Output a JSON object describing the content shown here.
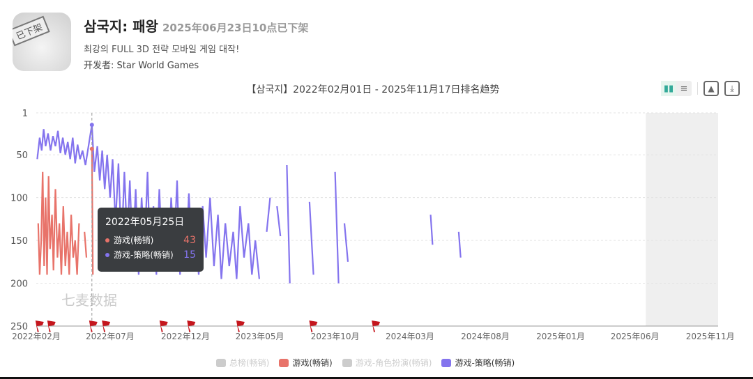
{
  "app": {
    "name": "삼국지: 패왕",
    "status": "2025年06月23日10点已下架",
    "description": "최강의 FULL 3D 전략 모바일 게임 대작!",
    "developer_label": "开发者:",
    "developer": "Star World Games",
    "icon_stamp": "已下架"
  },
  "toolbar": {
    "icons": [
      "bar-chart-icon",
      "list-icon",
      "image-download-icon",
      "download-icon"
    ]
  },
  "chart_data": {
    "type": "line",
    "title": "【삼국지】2022年02月01日 - 2025年11月17日排名趋势",
    "x_range": [
      "2022-02-01",
      "2025-11-17"
    ],
    "y_range": [
      1,
      250
    ],
    "y_inverted": true,
    "y_ticks": [
      "1",
      "50",
      "100",
      "150",
      "200",
      "250"
    ],
    "x_ticks": [
      {
        "date": "2022-02-01",
        "label": "2022年02月"
      },
      {
        "date": "2022-07-01",
        "label": "2022年07月"
      },
      {
        "date": "2022-12-01",
        "label": "2022年12月"
      },
      {
        "date": "2023-05-01",
        "label": "2023年05月"
      },
      {
        "date": "2023-10-01",
        "label": "2023年10月"
      },
      {
        "date": "2024-03-01",
        "label": "2024年03月"
      },
      {
        "date": "2024-08-01",
        "label": "2024年08月"
      },
      {
        "date": "2025-01-01",
        "label": "2025年01月"
      },
      {
        "date": "2025-06-01",
        "label": "2025年06月"
      },
      {
        "date": "2025-11-01",
        "label": "2025年11月"
      }
    ],
    "grid": "horizontal-dashed",
    "shaded_after": "2025-06-23",
    "watermark": "七麦数据",
    "event_flags": [
      "2022-02-05",
      "2022-03-01",
      "2022-05-25",
      "2022-06-20",
      "2022-10-15",
      "2022-12-10",
      "2023-03-20",
      "2023-08-15",
      "2023-12-20"
    ],
    "legend_position": "bottom",
    "series": [
      {
        "name": "总榜(畅销)",
        "color": "#cccccc",
        "active": false,
        "points": []
      },
      {
        "name": "游戏(畅销)",
        "color": "#e8736a",
        "active": true,
        "points": [
          [
            "2022-02-05",
            130
          ],
          [
            "2022-02-08",
            190
          ],
          [
            "2022-02-11",
            150
          ],
          [
            "2022-02-14",
            70
          ],
          [
            "2022-02-17",
            180
          ],
          [
            "2022-02-20",
            100
          ],
          [
            "2022-02-23",
            190
          ],
          [
            "2022-02-26",
            75
          ],
          [
            "2022-03-01",
            160
          ],
          [
            "2022-03-05",
            120
          ],
          [
            "2022-03-08",
            185
          ],
          [
            "2022-03-12",
            90
          ],
          [
            "2022-03-16",
            170
          ],
          [
            "2022-03-20",
            130
          ],
          [
            "2022-03-24",
            190
          ],
          [
            "2022-03-28",
            110
          ],
          [
            "2022-04-01",
            180
          ],
          [
            "2022-04-05",
            140
          ],
          [
            "2022-04-09",
            190
          ],
          [
            "2022-04-13",
            120
          ],
          [
            "2022-04-17",
            170
          ],
          [
            "2022-04-21",
            150
          ],
          [
            "2022-04-25",
            190
          ],
          [
            "2022-04-29",
            130
          ],
          [
            "2022-05-03",
            null
          ],
          [
            "2022-05-10",
            140
          ],
          [
            "2022-05-14",
            170
          ],
          [
            "2022-05-18",
            null
          ],
          [
            "2022-05-25",
            43
          ],
          [
            "2022-05-27",
            190
          ],
          [
            "2022-05-30",
            null
          ],
          [
            "2022-06-10",
            140
          ],
          [
            "2022-06-14",
            180
          ],
          [
            "2022-06-16",
            null
          ],
          [
            "2022-06-22",
            185
          ],
          [
            "2022-06-24",
            183
          ],
          [
            "2022-06-25",
            null
          ],
          [
            "2022-07-15",
            160
          ],
          [
            "2022-07-18",
            null
          ],
          [
            "2022-08-05",
            140
          ],
          [
            "2022-08-10",
            180
          ]
        ]
      },
      {
        "name": "游戏-角色扮演(畅销)",
        "color": "#cccccc",
        "active": false,
        "points": []
      },
      {
        "name": "游戏-策略(畅销)",
        "color": "#8474ee",
        "active": true,
        "points": [
          [
            "2022-02-03",
            55
          ],
          [
            "2022-02-08",
            30
          ],
          [
            "2022-02-12",
            45
          ],
          [
            "2022-02-16",
            20
          ],
          [
            "2022-02-20",
            40
          ],
          [
            "2022-02-25",
            25
          ],
          [
            "2022-03-02",
            45
          ],
          [
            "2022-03-07",
            28
          ],
          [
            "2022-03-12",
            40
          ],
          [
            "2022-03-17",
            22
          ],
          [
            "2022-03-22",
            48
          ],
          [
            "2022-03-27",
            30
          ],
          [
            "2022-04-01",
            50
          ],
          [
            "2022-04-06",
            35
          ],
          [
            "2022-04-11",
            55
          ],
          [
            "2022-04-16",
            30
          ],
          [
            "2022-04-21",
            60
          ],
          [
            "2022-04-26",
            38
          ],
          [
            "2022-05-01",
            55
          ],
          [
            "2022-05-06",
            45
          ],
          [
            "2022-05-12",
            62
          ],
          [
            "2022-05-18",
            40
          ],
          [
            "2022-05-25",
            15
          ],
          [
            "2022-05-30",
            70
          ],
          [
            "2022-06-05",
            40
          ],
          [
            "2022-06-10",
            80
          ],
          [
            "2022-06-15",
            45
          ],
          [
            "2022-06-20",
            90
          ],
          [
            "2022-06-25",
            50
          ],
          [
            "2022-07-01",
            100
          ],
          [
            "2022-07-06",
            55
          ],
          [
            "2022-07-12",
            130
          ],
          [
            "2022-07-18",
            60
          ],
          [
            "2022-07-24",
            160
          ],
          [
            "2022-07-30",
            70
          ],
          [
            "2022-08-05",
            150
          ],
          [
            "2022-08-10",
            80
          ],
          [
            "2022-08-16",
            170
          ],
          [
            "2022-08-22",
            90
          ],
          [
            "2022-08-28",
            190
          ],
          [
            "2022-09-03",
            100
          ],
          [
            "2022-09-09",
            160
          ],
          [
            "2022-09-15",
            70
          ],
          [
            "2022-09-21",
            180
          ],
          [
            "2022-09-27",
            110
          ],
          [
            "2022-10-03",
            190
          ],
          [
            "2022-10-09",
            90
          ],
          [
            "2022-10-15",
            170
          ],
          [
            "2022-10-21",
            120
          ],
          [
            "2022-10-27",
            185
          ],
          [
            "2022-11-02",
            100
          ],
          [
            "2022-11-08",
            160
          ],
          [
            "2022-11-14",
            80
          ],
          [
            "2022-11-20",
            190
          ],
          [
            "2022-11-26",
            130
          ],
          [
            "2022-12-02",
            175
          ],
          [
            "2022-12-08",
            95
          ],
          [
            "2022-12-14",
            160
          ],
          [
            "2022-12-20",
            120
          ],
          [
            "2022-12-28",
            190
          ],
          [
            "2023-01-05",
            110
          ],
          [
            "2023-01-12",
            170
          ],
          [
            "2023-01-20",
            100
          ],
          [
            "2023-01-28",
            180
          ],
          [
            "2023-02-05",
            120
          ],
          [
            "2023-02-12",
            195
          ],
          [
            "2023-02-20",
            130
          ],
          [
            "2023-02-28",
            180
          ],
          [
            "2023-03-08",
            140
          ],
          [
            "2023-03-15",
            195
          ],
          [
            "2023-03-22",
            110
          ],
          [
            "2023-03-30",
            170
          ],
          [
            "2023-04-08",
            130
          ],
          [
            "2023-04-15",
            190
          ],
          [
            "2023-04-22",
            150
          ],
          [
            "2023-04-30",
            195
          ],
          [
            "2023-05-08",
            null
          ],
          [
            "2023-05-15",
            140
          ],
          [
            "2023-05-22",
            100
          ],
          [
            "2023-05-28",
            null
          ],
          [
            "2023-06-05",
            110
          ],
          [
            "2023-06-12",
            145
          ],
          [
            "2023-06-20",
            null
          ],
          [
            "2023-06-25",
            62
          ],
          [
            "2023-07-01",
            200
          ],
          [
            "2023-07-05",
            null
          ],
          [
            "2023-08-10",
            105
          ],
          [
            "2023-08-18",
            190
          ],
          [
            "2023-08-25",
            null
          ],
          [
            "2023-10-01",
            70
          ],
          [
            "2023-10-08",
            200
          ],
          [
            "2023-10-15",
            null
          ],
          [
            "2023-10-20",
            130
          ],
          [
            "2023-10-27",
            175
          ],
          [
            "2023-11-02",
            null
          ],
          [
            "2024-04-12",
            120
          ],
          [
            "2024-04-16",
            155
          ],
          [
            "2024-04-20",
            null
          ],
          [
            "2024-06-08",
            140
          ],
          [
            "2024-06-12",
            170
          ]
        ]
      }
    ],
    "tooltip": {
      "date": "2022年05月25日",
      "rows": [
        {
          "name": "游戏(畅销)",
          "value": "43",
          "color": "#e8736a"
        },
        {
          "name": "游戏-策略(畅销)",
          "value": "15",
          "color": "#8474ee"
        }
      ]
    }
  }
}
